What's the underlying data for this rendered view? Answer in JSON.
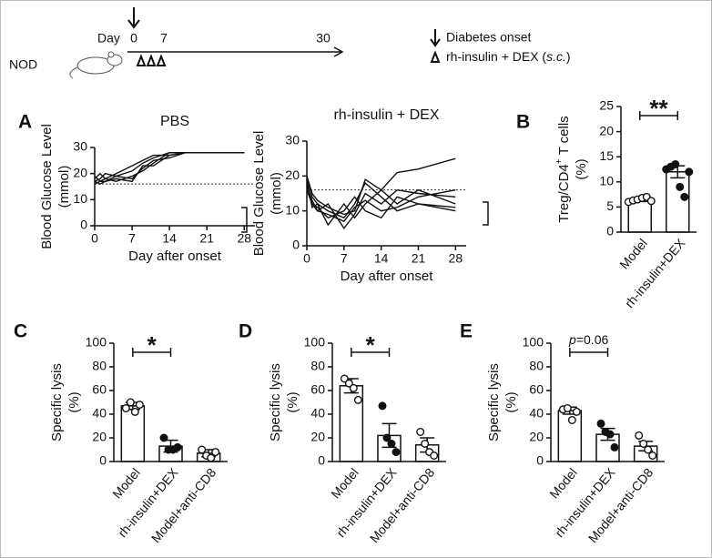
{
  "timeline": {
    "day_label": "Day",
    "ticks": [
      0,
      7,
      30
    ],
    "subject": "NOD",
    "legend": {
      "onset": "Diabetes onset",
      "treatment": [
        "rh-insulin + DEX (",
        "s.c.",
        ")"
      ]
    }
  },
  "chart_data": [
    {
      "type": "line",
      "panel": "A",
      "title": "PBS",
      "xlabel": "Day after onset",
      "ylabel": [
        "Blood Glucose Level",
        "(mmol)"
      ],
      "x": [
        0,
        1,
        2,
        4,
        7,
        9,
        11,
        14,
        17,
        21,
        28
      ],
      "xlim": [
        0,
        30
      ],
      "xticks": [
        0,
        7,
        14,
        21,
        28
      ],
      "ylim": [
        0,
        30
      ],
      "yticks": [
        0,
        10,
        20,
        30
      ],
      "threshold": 16,
      "series": [
        {
          "color": "#111",
          "values": [
            17,
            18,
            20,
            19,
            21,
            24,
            26,
            28,
            28,
            28,
            28
          ]
        },
        {
          "color": "#111",
          "values": [
            19,
            17,
            18,
            20,
            23,
            25,
            27,
            27,
            28,
            28,
            28
          ]
        },
        {
          "color": "#111",
          "values": [
            16,
            17,
            17,
            19,
            18,
            22,
            25,
            26,
            28,
            28,
            28
          ]
        },
        {
          "color": "#111",
          "values": [
            18,
            20,
            18,
            17,
            19,
            21,
            24,
            28,
            28,
            28,
            28
          ]
        },
        {
          "color": "#111",
          "values": [
            17,
            16,
            17,
            18,
            17,
            23,
            23,
            27,
            28,
            28,
            28
          ]
        }
      ]
    },
    {
      "type": "line",
      "title": "rh-insulin + DEX",
      "xlabel": "Day after onset",
      "ylabel": [
        "Blood Glucose Level",
        "(mmol)"
      ],
      "x": [
        0,
        1,
        2,
        4,
        7,
        9,
        11,
        14,
        17,
        21,
        28
      ],
      "xlim": [
        0,
        30
      ],
      "xticks": [
        0,
        7,
        14,
        21,
        28
      ],
      "ylim": [
        0,
        30
      ],
      "yticks": [
        0,
        10,
        20,
        30
      ],
      "threshold": 16,
      "series": [
        {
          "color": "#111",
          "values": [
            20,
            14,
            12,
            10,
            8,
            12,
            18,
            14,
            10,
            12,
            11
          ]
        },
        {
          "color": "#111",
          "values": [
            18,
            12,
            11,
            8,
            10,
            14,
            10,
            8,
            14,
            12,
            10
          ]
        },
        {
          "color": "#111",
          "values": [
            17,
            13,
            10,
            12,
            5,
            9,
            15,
            12,
            16,
            15,
            14
          ]
        },
        {
          "color": "#111",
          "values": [
            19,
            11,
            12,
            6,
            12,
            8,
            12,
            16,
            12,
            16,
            12
          ]
        },
        {
          "color": "#111",
          "values": [
            20,
            15,
            13,
            11,
            9,
            10,
            19,
            16,
            21,
            22,
            25
          ]
        },
        {
          "color": "#111",
          "values": [
            16,
            12,
            10,
            9,
            7,
            11,
            13,
            10,
            11,
            14,
            16
          ]
        }
      ]
    },
    {
      "type": "bar",
      "panel": "B",
      "ylabel": [
        "Treg/CD4",
        "(%)"
      ],
      "ylabel_sup": "+",
      "ylabel_rest": "T cells",
      "categories": [
        "Model",
        "rh-insulin+DEX"
      ],
      "values": [
        6.5,
        12
      ],
      "errors": [
        0.4,
        1.2
      ],
      "points": [
        [
          6,
          6.3,
          6.5,
          6.8,
          7,
          6.2
        ],
        [
          12.5,
          13,
          13.5,
          9,
          7,
          12
        ]
      ],
      "marker_styles": [
        "open",
        "filled"
      ],
      "ylim": [
        0,
        25
      ],
      "yticks": [
        0,
        5,
        10,
        15,
        20,
        25
      ],
      "significance": {
        "bracket": [
          0,
          1
        ],
        "text": "**"
      }
    },
    {
      "type": "bar",
      "panel": "C",
      "ylabel": [
        "Specific lysis",
        "(%)"
      ],
      "categories": [
        "Model",
        "rh-insulin+DEX",
        "Model+anti-CD8"
      ],
      "values": [
        47,
        13,
        7
      ],
      "errors": [
        3,
        5,
        3
      ],
      "points": [
        [
          45,
          50,
          42,
          48
        ],
        [
          20,
          10,
          10,
          12
        ],
        [
          10,
          5,
          3,
          8
        ]
      ],
      "marker_styles": [
        "open",
        "filled",
        "open"
      ],
      "ylim": [
        0,
        100
      ],
      "yticks": [
        0,
        20,
        40,
        60,
        80,
        100
      ],
      "significance": {
        "bracket": [
          0,
          1
        ],
        "text": "*"
      }
    },
    {
      "type": "bar",
      "panel": "D",
      "ylabel": [
        "Specific lysis",
        "(%)"
      ],
      "categories": [
        "Model",
        "rh-insulin+DEX",
        "Model+anti-CD8"
      ],
      "values": [
        64,
        22,
        14
      ],
      "errors": [
        6,
        10,
        6
      ],
      "points": [
        [
          70,
          66,
          62,
          52
        ],
        [
          47,
          20,
          15,
          8
        ],
        [
          25,
          15,
          8,
          5
        ]
      ],
      "marker_styles": [
        "open",
        "filled",
        "open"
      ],
      "ylim": [
        0,
        100
      ],
      "yticks": [
        0,
        20,
        40,
        60,
        80,
        100
      ],
      "significance": {
        "bracket": [
          0,
          1
        ],
        "text": "*"
      }
    },
    {
      "type": "bar",
      "panel": "E",
      "ylabel": [
        "Specific lysis",
        "(%)"
      ],
      "categories": [
        "Model",
        "rh-insulin+DEX",
        "Model+anti-CD8"
      ],
      "values": [
        43,
        23,
        13
      ],
      "errors": [
        3,
        5,
        4
      ],
      "points": [
        [
          44,
          45,
          35,
          42
        ],
        [
          32,
          25,
          23,
          12
        ],
        [
          22,
          15,
          10,
          5
        ]
      ],
      "marker_styles": [
        "open",
        "filled",
        "open"
      ],
      "ylim": [
        0,
        100
      ],
      "yticks": [
        0,
        20,
        40,
        60,
        80,
        100
      ],
      "significance": {
        "bracket": [
          0,
          1
        ],
        "text": [
          "p",
          "=0.06"
        ]
      }
    }
  ]
}
